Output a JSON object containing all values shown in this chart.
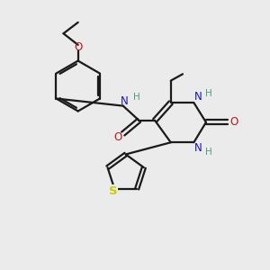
{
  "background_color": "#ebebeb",
  "atom_colors": {
    "C": "#1a1a1a",
    "N": "#1414cc",
    "O": "#cc1414",
    "S": "#cccc00",
    "H": "#4a9a8a"
  },
  "figsize": [
    3.0,
    3.0
  ],
  "dpi": 100
}
